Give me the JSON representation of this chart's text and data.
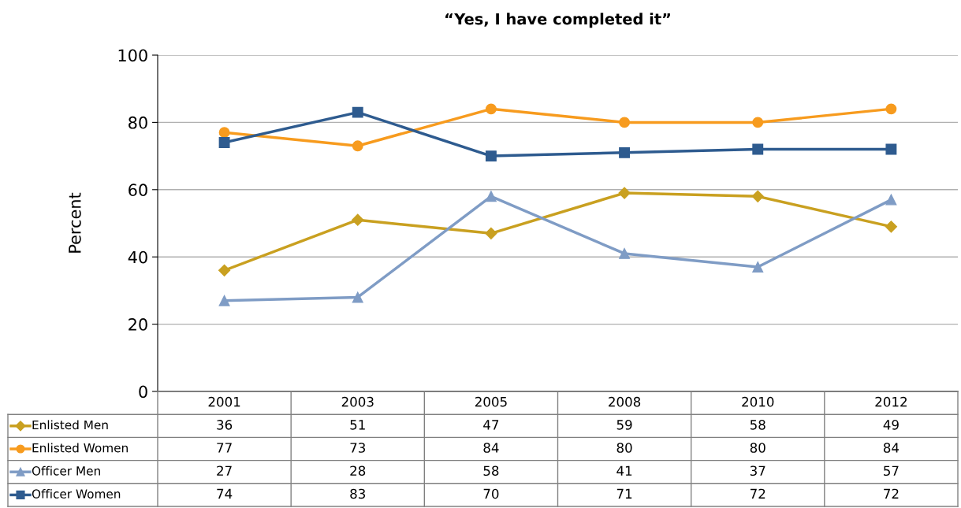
{
  "chart_data": {
    "type": "line",
    "title": "“Yes, I have completed it”",
    "ylabel": "Percent",
    "categories": [
      "2001",
      "2003",
      "2005",
      "2008",
      "2010",
      "2012"
    ],
    "series": [
      {
        "name": "Enlisted Men",
        "color": "#c9a020",
        "marker": "diamond",
        "values": [
          36,
          51,
          47,
          59,
          58,
          49
        ]
      },
      {
        "name": "Enlisted Women",
        "color": "#f79b1e",
        "marker": "circle",
        "values": [
          77,
          73,
          84,
          80,
          80,
          84
        ]
      },
      {
        "name": "Officer Men",
        "color": "#7f9cc5",
        "marker": "triangle",
        "values": [
          27,
          28,
          58,
          41,
          37,
          57
        ]
      },
      {
        "name": "Officer Women",
        "color": "#2e5b8f",
        "marker": "square",
        "values": [
          74,
          83,
          70,
          71,
          72,
          72
        ]
      }
    ],
    "ylim": [
      0,
      100
    ],
    "yticks": [
      0,
      20,
      40,
      60,
      80,
      100
    ],
    "grid": "y",
    "data_labels": true,
    "legend": "bottom left",
    "line_style": "solid"
  }
}
